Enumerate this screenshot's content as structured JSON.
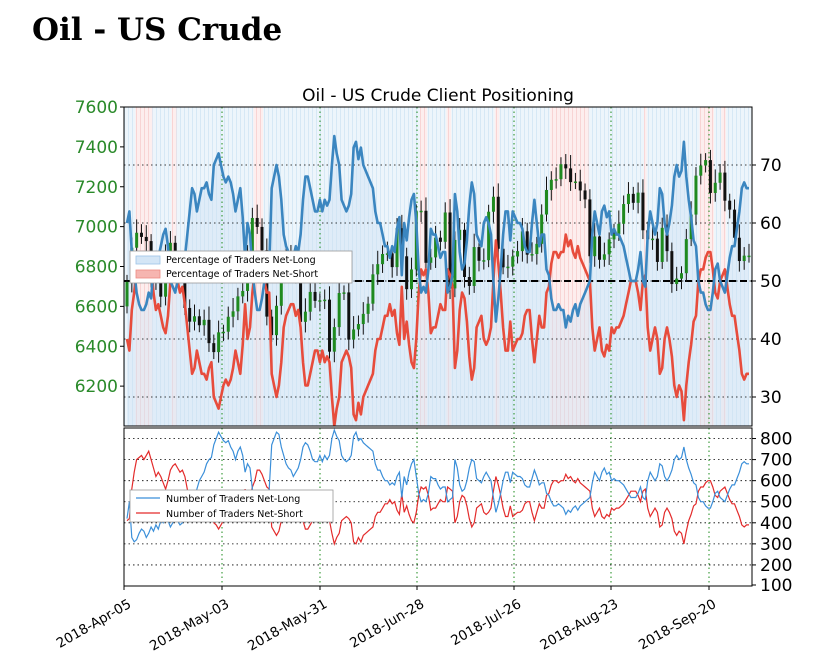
{
  "page_title": "Oil - US Crude",
  "chart_data": [
    {
      "type": "candlestick+line",
      "title": "Oil - US Crude Client Positioning",
      "x_ticks": [
        "2018-Apr-05",
        "2018-May-03",
        "2018-May-31",
        "2018-Jun-28",
        "2018-Jul-26",
        "2018-Aug-23",
        "2018-Sep-20"
      ],
      "y_left": {
        "ticks": [
          6200,
          6400,
          6600,
          6800,
          7000,
          7200,
          7400,
          7600
        ],
        "range": [
          6000,
          7600
        ],
        "color": "#2a8a2a"
      },
      "y_right": {
        "ticks": [
          30,
          40,
          50,
          60,
          70
        ],
        "range": [
          25,
          80
        ]
      },
      "legend": {
        "position": "left",
        "entries": [
          "Percentage of Traders Net-Long",
          "Percentage of Traders Net-Short"
        ]
      },
      "reference_line": 50,
      "grid": true,
      "series": [
        {
          "name": "Percentage of Traders Net-Long",
          "color": "#3b86c0",
          "values": [
            60,
            62,
            55,
            52,
            48,
            46,
            45,
            45,
            46,
            48,
            47,
            52,
            55,
            54,
            56,
            58,
            59,
            56,
            50,
            49,
            48,
            50,
            52,
            51,
            54,
            58,
            62,
            66,
            65,
            62,
            64,
            66,
            66,
            67,
            65,
            64,
            70,
            71,
            72,
            70,
            68,
            67,
            68,
            67,
            65,
            62,
            64,
            66,
            61,
            54,
            60,
            58,
            52,
            48,
            45,
            45,
            47,
            50,
            52,
            52,
            66,
            68,
            70,
            68,
            64,
            58,
            56,
            55,
            54,
            54,
            56,
            55,
            58,
            64,
            68,
            68,
            66,
            64,
            62,
            62,
            64,
            62,
            64,
            63,
            64,
            70,
            75,
            72,
            70,
            64,
            63,
            62,
            63,
            65,
            73,
            74,
            71,
            73,
            70,
            69,
            68,
            67,
            66,
            62,
            60,
            60,
            58,
            56,
            56,
            54,
            56,
            55,
            59,
            61,
            51,
            60,
            57,
            61,
            64,
            65,
            60,
            52,
            48,
            49,
            48,
            52,
            59,
            58,
            58,
            56,
            54,
            55,
            55,
            48,
            49,
            51,
            65,
            62,
            55,
            52,
            53,
            57,
            63,
            67,
            65,
            58,
            57,
            56,
            60,
            61,
            60,
            58,
            50,
            43,
            47,
            52,
            58,
            62,
            62,
            57,
            62,
            61,
            60,
            60,
            59,
            56,
            55,
            55,
            60,
            64,
            60,
            56,
            58,
            58,
            52,
            51,
            47,
            45,
            45,
            46,
            45,
            45,
            42,
            44,
            43,
            45,
            46,
            44,
            46,
            47,
            48,
            49,
            50,
            58,
            62,
            60,
            58,
            62,
            63,
            61,
            62,
            58,
            59,
            58,
            58,
            57,
            56,
            54,
            52,
            50,
            50,
            50,
            52,
            55,
            50,
            49,
            58,
            62,
            60,
            58,
            60,
            66,
            65,
            60,
            58,
            60,
            63,
            68,
            70,
            68,
            69,
            74,
            68,
            64,
            61,
            57,
            56,
            50,
            48,
            48,
            46,
            45,
            45,
            48,
            52,
            53,
            50,
            49,
            48,
            51,
            54,
            56,
            56,
            59,
            62,
            66,
            67,
            66,
            66
          ]
        },
        {
          "name": "Percentage of Traders Net-Short",
          "color": "#e74c3c",
          "values": [
            40,
            38,
            45,
            48,
            52,
            54,
            55,
            55,
            54,
            52,
            53,
            48,
            45,
            46,
            44,
            42,
            41,
            44,
            50,
            51,
            52,
            50,
            48,
            49,
            46,
            42,
            38,
            34,
            35,
            38,
            36,
            34,
            34,
            33,
            35,
            36,
            30,
            29,
            28,
            30,
            32,
            33,
            32,
            33,
            35,
            38,
            36,
            34,
            39,
            46,
            40,
            42,
            48,
            52,
            55,
            55,
            53,
            50,
            48,
            48,
            34,
            32,
            30,
            32,
            36,
            42,
            44,
            45,
            46,
            46,
            44,
            45,
            42,
            36,
            32,
            32,
            34,
            36,
            38,
            38,
            36,
            38,
            36,
            37,
            36,
            30,
            25,
            28,
            30,
            36,
            37,
            38,
            37,
            35,
            27,
            26,
            29,
            27,
            30,
            31,
            32,
            33,
            34,
            38,
            40,
            40,
            42,
            44,
            44,
            46,
            44,
            45,
            41,
            39,
            49,
            40,
            43,
            39,
            36,
            35,
            40,
            48,
            52,
            51,
            52,
            48,
            41,
            42,
            42,
            44,
            46,
            45,
            45,
            52,
            51,
            49,
            35,
            38,
            45,
            48,
            47,
            43,
            37,
            33,
            35,
            42,
            43,
            44,
            40,
            39,
            40,
            42,
            50,
            57,
            53,
            48,
            42,
            38,
            38,
            43,
            38,
            39,
            40,
            40,
            41,
            44,
            45,
            45,
            40,
            36,
            40,
            44,
            42,
            42,
            48,
            49,
            53,
            55,
            55,
            54,
            55,
            55,
            58,
            56,
            57,
            55,
            54,
            56,
            54,
            53,
            52,
            51,
            50,
            42,
            38,
            40,
            42,
            38,
            37,
            39,
            38,
            42,
            41,
            42,
            42,
            43,
            44,
            46,
            48,
            50,
            50,
            50,
            48,
            45,
            50,
            51,
            42,
            38,
            40,
            42,
            40,
            34,
            35,
            40,
            42,
            40,
            37,
            32,
            30,
            32,
            31,
            26,
            32,
            36,
            39,
            43,
            44,
            50,
            52,
            52,
            54,
            55,
            55,
            52,
            48,
            47,
            50,
            51,
            52,
            49,
            46,
            44,
            44,
            41,
            38,
            34,
            33,
            34,
            34
          ]
        }
      ]
    },
    {
      "type": "line",
      "y_ticks": [
        100,
        200,
        300,
        400,
        500,
        600,
        700,
        800
      ],
      "y_range": [
        100,
        850
      ],
      "legend": {
        "position": "left",
        "entries": [
          "Number of Traders Net-Long",
          "Number of Traders Net-Short"
        ]
      },
      "grid": true,
      "series": [
        {
          "name": "Number of Traders Net-Long",
          "color": "#3b8fd9",
          "values": [
            420,
            500,
            330,
            310,
            320,
            350,
            370,
            360,
            330,
            350,
            380,
            360,
            390,
            370,
            410,
            400,
            430,
            410,
            380,
            400,
            420,
            410,
            390,
            400,
            420,
            460,
            500,
            480,
            520,
            560,
            600,
            620,
            640,
            680,
            700,
            710,
            770,
            800,
            830,
            810,
            790,
            780,
            790,
            760,
            740,
            700,
            740,
            760,
            720,
            640,
            680,
            660,
            560,
            470,
            420,
            420,
            450,
            500,
            540,
            560,
            770,
            800,
            830,
            820,
            760,
            720,
            680,
            660,
            650,
            620,
            640,
            660,
            700,
            760,
            780,
            770,
            740,
            700,
            690,
            690,
            720,
            690,
            720,
            700,
            720,
            800,
            840,
            810,
            790,
            720,
            700,
            690,
            700,
            720,
            810,
            830,
            790,
            800,
            780,
            770,
            760,
            750,
            740,
            680,
            650,
            650,
            620,
            600,
            600,
            580,
            590,
            580,
            620,
            640,
            520,
            620,
            580,
            640,
            680,
            700,
            620,
            540,
            500,
            510,
            500,
            540,
            620,
            610,
            610,
            580,
            560,
            570,
            570,
            500,
            510,
            520,
            700,
            660,
            580,
            550,
            560,
            600,
            660,
            700,
            690,
            610,
            600,
            590,
            620,
            640,
            620,
            600,
            520,
            450,
            490,
            540,
            600,
            640,
            640,
            590,
            640,
            630,
            620,
            620,
            610,
            580,
            570,
            570,
            610,
            650,
            620,
            580,
            590,
            590,
            540,
            530,
            500,
            480,
            480,
            490,
            480,
            470,
            440,
            460,
            450,
            470,
            480,
            460,
            480,
            490,
            500,
            510,
            520,
            590,
            640,
            620,
            600,
            640,
            660,
            630,
            640,
            600,
            610,
            600,
            600,
            590,
            580,
            560,
            540,
            520,
            520,
            520,
            540,
            570,
            520,
            510,
            600,
            640,
            620,
            600,
            620,
            680,
            670,
            620,
            600,
            620,
            650,
            700,
            720,
            700,
            710,
            760,
            700,
            660,
            630,
            590,
            580,
            520,
            500,
            500,
            480,
            470,
            470,
            500,
            540,
            550,
            520,
            510,
            500,
            530,
            560,
            580,
            580,
            610,
            640,
            680,
            690,
            680,
            680
          ]
        },
        {
          "name": "Number of Traders Net-Short",
          "color": "#e32b2b",
          "values": [
            410,
            420,
            560,
            640,
            700,
            710,
            720,
            700,
            720,
            740,
            700,
            660,
            620,
            640,
            620,
            590,
            560,
            600,
            650,
            670,
            680,
            660,
            640,
            650,
            620,
            560,
            500,
            450,
            470,
            500,
            480,
            450,
            450,
            440,
            460,
            470,
            400,
            390,
            370,
            390,
            410,
            420,
            410,
            420,
            450,
            480,
            460,
            440,
            500,
            560,
            500,
            520,
            570,
            600,
            650,
            650,
            630,
            600,
            570,
            560,
            380,
            360,
            340,
            360,
            410,
            480,
            500,
            510,
            520,
            520,
            500,
            510,
            480,
            410,
            370,
            370,
            390,
            410,
            430,
            430,
            410,
            430,
            410,
            420,
            410,
            350,
            300,
            330,
            350,
            410,
            420,
            430,
            420,
            400,
            310,
            300,
            330,
            310,
            340,
            350,
            360,
            370,
            380,
            430,
            450,
            450,
            470,
            490,
            490,
            510,
            490,
            500,
            460,
            440,
            540,
            450,
            480,
            440,
            410,
            400,
            450,
            530,
            570,
            560,
            570,
            530,
            460,
            470,
            470,
            490,
            510,
            500,
            500,
            570,
            560,
            550,
            400,
            430,
            500,
            530,
            520,
            480,
            420,
            380,
            400,
            470,
            480,
            490,
            450,
            440,
            450,
            470,
            550,
            620,
            580,
            530,
            470,
            430,
            430,
            480,
            430,
            440,
            450,
            450,
            460,
            490,
            500,
            500,
            450,
            410,
            450,
            490,
            470,
            470,
            530,
            540,
            580,
            600,
            600,
            590,
            600,
            600,
            630,
            610,
            620,
            600,
            590,
            610,
            590,
            580,
            570,
            560,
            550,
            470,
            430,
            450,
            470,
            430,
            420,
            440,
            430,
            470,
            460,
            470,
            470,
            480,
            490,
            510,
            530,
            550,
            550,
            550,
            530,
            500,
            550,
            560,
            470,
            430,
            450,
            470,
            450,
            380,
            390,
            450,
            470,
            450,
            420,
            360,
            340,
            360,
            350,
            300,
            360,
            410,
            440,
            480,
            490,
            550,
            570,
            570,
            590,
            600,
            600,
            570,
            530,
            520,
            550,
            560,
            570,
            540,
            510,
            490,
            490,
            460,
            430,
            390,
            380,
            390,
            390
          ]
        }
      ]
    }
  ]
}
